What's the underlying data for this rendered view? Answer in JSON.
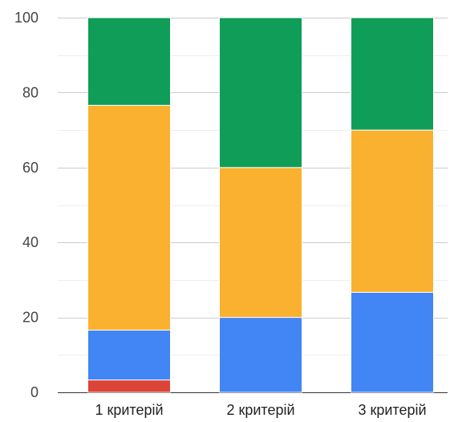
{
  "chart_data": {
    "type": "bar",
    "stacked": true,
    "categories": [
      "1 критерій",
      "2 критерій",
      "3 критерій"
    ],
    "series": [
      {
        "values": [
          3.3,
          0,
          0
        ],
        "color": "#db4437"
      },
      {
        "values": [
          13.3,
          20,
          26.7
        ],
        "color": "#4285f4"
      },
      {
        "values": [
          60,
          40,
          43.3
        ],
        "color": "#f9b12f"
      },
      {
        "values": [
          23.4,
          40,
          30
        ],
        "color": "#0f9d58"
      }
    ],
    "ylim": [
      0,
      100
    ],
    "yticks": [
      0,
      20,
      40,
      60,
      80,
      100
    ],
    "grid": true,
    "legend": "none",
    "title": "",
    "xlabel": "",
    "ylabel": ""
  }
}
